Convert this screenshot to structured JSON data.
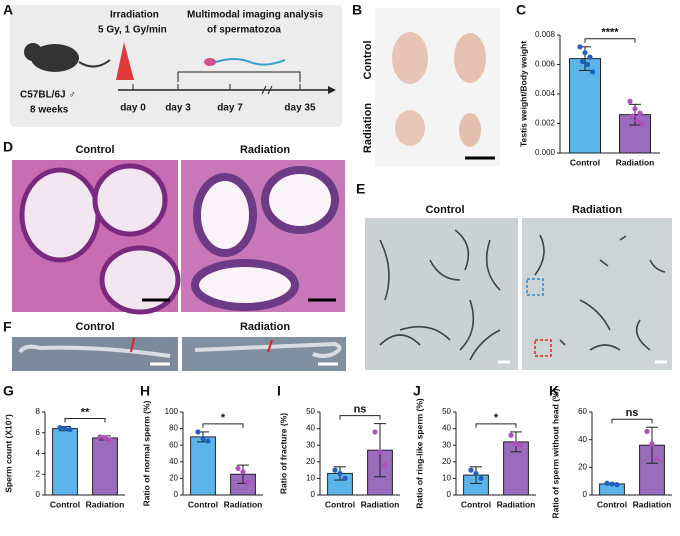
{
  "panel_a": {
    "label": "A",
    "irradiation": "Irradiation",
    "dose": "5 Gy, 1 Gy/min",
    "analysis_line1": "Multimodal imaging analysis",
    "analysis_line2": "of spermatozoa",
    "strain": "C57BL/6J ♂",
    "age": "8 weeks",
    "days": [
      "day 0",
      "day 3",
      "day 7",
      "day 35"
    ]
  },
  "panel_b": {
    "label": "B",
    "rows": [
      "Control",
      "Radiation"
    ]
  },
  "panel_d": {
    "label": "D",
    "titles": [
      "Control",
      "Radiation"
    ]
  },
  "panel_e": {
    "label": "E",
    "titles": [
      "Control",
      "Radiation"
    ]
  },
  "panel_f": {
    "label": "F",
    "titles": [
      "Control",
      "Radiation"
    ]
  },
  "chart_data": [
    {
      "type": "bar",
      "panel": "C",
      "ylabel": "Testis weight/Body weight",
      "categories": [
        "Control",
        "Radiation"
      ],
      "colors": [
        "#5bb5ea",
        "#9b6bbd"
      ],
      "point_colors": [
        "#1f5fc0",
        "#b04fbf"
      ],
      "values": [
        0.0064,
        0.0026
      ],
      "errors": [
        0.0008,
        0.0007
      ],
      "points": [
        [
          0.0072,
          0.0068,
          0.0065,
          0.0062,
          0.006,
          0.0055
        ],
        [
          0.0035,
          0.003,
          0.0027,
          0.0025,
          0.0022,
          0.002
        ]
      ],
      "significance": "****",
      "ylim": [
        0,
        0.008
      ],
      "yticks": [
        {
          "value": 0,
          "label": "0.000"
        },
        {
          "value": 0.002,
          "label": "0.002"
        },
        {
          "value": 0.004,
          "label": "0.004"
        },
        {
          "value": 0.006,
          "label": "0.006"
        },
        {
          "value": 0.008,
          "label": "0.008"
        }
      ]
    },
    {
      "type": "bar",
      "panel": "G",
      "ylabel": "Sperm count (X10⁷)",
      "categories": [
        "Control",
        "Radiation"
      ],
      "colors": [
        "#5bb5ea",
        "#9b6bbd"
      ],
      "point_colors": [
        "#1f5fc0",
        "#b04fbf"
      ],
      "values": [
        6.4,
        5.5
      ],
      "errors": [
        0.2,
        0.2
      ],
      "points": [
        [
          6.5,
          6.4,
          6.3
        ],
        [
          5.6,
          5.5,
          5.3
        ]
      ],
      "significance": "**",
      "ylim": [
        0,
        8
      ],
      "yticks": [
        0,
        2,
        4,
        6,
        8
      ]
    },
    {
      "type": "bar",
      "panel": "H",
      "ylabel": "Ratio of normal sperm (%)",
      "categories": [
        "Control",
        "Radiation"
      ],
      "colors": [
        "#5bb5ea",
        "#9b6bbd"
      ],
      "point_colors": [
        "#1f5fc0",
        "#b04fbf"
      ],
      "values": [
        70,
        25
      ],
      "errors": [
        6,
        11
      ],
      "points": [
        [
          76,
          68,
          65
        ],
        [
          32,
          28,
          15
        ]
      ],
      "significance": "*",
      "ylim": [
        0,
        100
      ],
      "yticks": [
        0,
        20,
        40,
        60,
        80,
        100
      ]
    },
    {
      "type": "bar",
      "panel": "I",
      "ylabel": "Ratio of fracture (%)",
      "categories": [
        "Control",
        "Radiation"
      ],
      "colors": [
        "#5bb5ea",
        "#9b6bbd"
      ],
      "point_colors": [
        "#1f5fc0",
        "#b04fbf"
      ],
      "values": [
        13,
        27
      ],
      "errors": [
        4,
        16
      ],
      "points": [
        [
          15,
          13,
          10
        ],
        [
          38,
          26,
          18
        ]
      ],
      "significance": "ns",
      "ylim": [
        0,
        50
      ],
      "yticks": [
        0,
        10,
        20,
        30,
        40,
        50
      ]
    },
    {
      "type": "bar",
      "panel": "J",
      "ylabel": "Ratio of ring-like sperm (%)",
      "categories": [
        "Control",
        "Radiation"
      ],
      "colors": [
        "#5bb5ea",
        "#9b6bbd"
      ],
      "point_colors": [
        "#1f5fc0",
        "#b04fbf"
      ],
      "values": [
        12,
        32
      ],
      "errors": [
        5,
        6
      ],
      "points": [
        [
          15,
          13,
          10
        ],
        [
          36,
          31,
          30
        ]
      ],
      "significance": "*",
      "ylim": [
        0,
        50
      ],
      "yticks": [
        0,
        10,
        20,
        30,
        40,
        50
      ]
    },
    {
      "type": "bar",
      "panel": "K",
      "ylabel": "Ratio of sperm without head (%)",
      "categories": [
        "Control",
        "Radiation"
      ],
      "colors": [
        "#5bb5ea",
        "#9b6bbd"
      ],
      "point_colors": [
        "#1f5fc0",
        "#b04fbf"
      ],
      "values": [
        8,
        36
      ],
      "errors": [
        0.5,
        13
      ],
      "points": [
        [
          8.5,
          8,
          7.5
        ],
        [
          46,
          37,
          26
        ]
      ],
      "significance": "ns",
      "ylim": [
        0,
        60
      ],
      "yticks": [
        0,
        20,
        40,
        60
      ]
    }
  ]
}
